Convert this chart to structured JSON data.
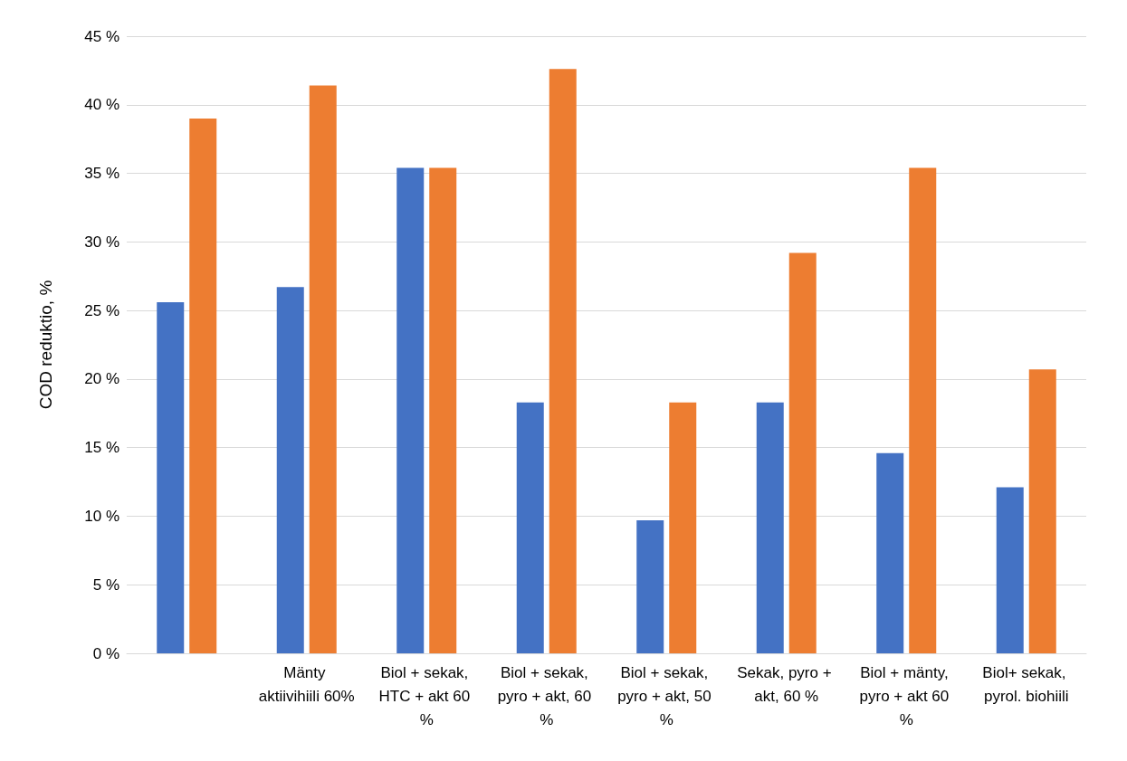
{
  "chart_data": {
    "type": "bar",
    "ylabel": "COD reduktio, %",
    "categories": [
      null,
      "Mänty aktiivihiili 60%",
      "Biol + sekak, HTC + akt 60 %",
      "Biol + sekak, pyro + akt, 60 %",
      "Biol + sekak, pyro + akt, 50 %",
      "Sekak, pyro + akt, 60 %",
      "Biol + mänty, pyro + akt 60 %",
      "Biol+ sekak, pyrol. biohiili"
    ],
    "series": [
      {
        "color": "#4472c4",
        "values": [
          25.6,
          26.7,
          35.4,
          18.3,
          9.7,
          18.3,
          14.6,
          12.1
        ]
      },
      {
        "color": "#ed7d31",
        "values": [
          39.0,
          41.4,
          35.4,
          42.6,
          18.3,
          29.2,
          35.4,
          20.7
        ]
      }
    ],
    "ylim": [
      0,
      45
    ],
    "yticks": [
      {
        "value": 0,
        "label": "0 %"
      },
      {
        "value": 5,
        "label": "5 %"
      },
      {
        "value": 10,
        "label": "10 %"
      },
      {
        "value": 15,
        "label": "15 %"
      },
      {
        "value": 20,
        "label": "20 %"
      },
      {
        "value": 25,
        "label": "25 %"
      },
      {
        "value": 30,
        "label": "30 %"
      },
      {
        "value": 35,
        "label": "35 %"
      },
      {
        "value": 40,
        "label": "40 %"
      },
      {
        "value": 45,
        "label": "45 %"
      }
    ],
    "grid": "y"
  }
}
